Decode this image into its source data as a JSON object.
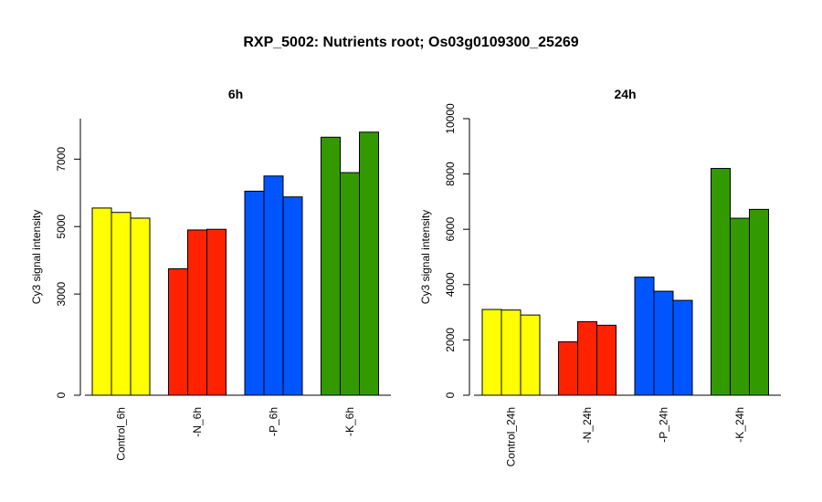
{
  "figure": {
    "title": "RXP_5002: Nutrients root; Os03g0109300_25269"
  },
  "colors": {
    "Control": "#ffff00",
    "N": "#ff2200",
    "P": "#0055ff",
    "K": "#339900"
  },
  "chart_data": [
    {
      "type": "bar",
      "title": "6h",
      "ylabel": "Cy3 signal intensity",
      "ylim": [
        0,
        8200
      ],
      "y_ticks": [
        0,
        3000,
        5000,
        7000
      ],
      "categories": [
        "Control_6h",
        "-N_6h",
        "-P_6h",
        "-K_6h"
      ],
      "values": [
        [
          5550,
          5420,
          5250
        ],
        [
          3750,
          4900,
          4920
        ],
        [
          6050,
          6500,
          5880
        ],
        [
          7650,
          6600,
          7800
        ]
      ],
      "color_keys": [
        "Control",
        "N",
        "P",
        "K"
      ]
    },
    {
      "type": "bar",
      "title": "24h",
      "ylabel": "Cy3 signal intensity",
      "ylim": [
        0,
        10000
      ],
      "y_ticks": [
        0,
        2000,
        4000,
        6000,
        8000,
        10000
      ],
      "categories": [
        "Control_24h",
        "-N_24h",
        "-P_24h",
        "-K_24h"
      ],
      "values": [
        [
          3100,
          3080,
          2900
        ],
        [
          1930,
          2660,
          2530
        ],
        [
          4270,
          3760,
          3430
        ],
        [
          8200,
          6400,
          6720
        ]
      ],
      "color_keys": [
        "Control",
        "N",
        "P",
        "K"
      ]
    }
  ]
}
